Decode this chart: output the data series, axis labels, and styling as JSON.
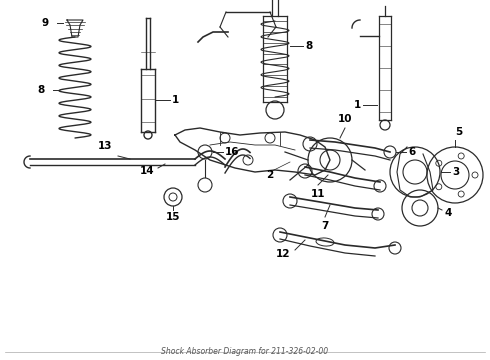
{
  "title": "Shock Absorber Diagram for 211-326-02-00",
  "background_color": "#ffffff",
  "fig_width": 4.9,
  "fig_height": 3.6,
  "dpi": 100,
  "line_color": "#2a2a2a",
  "label_color": "#000000",
  "label_fontsize": 7.5
}
